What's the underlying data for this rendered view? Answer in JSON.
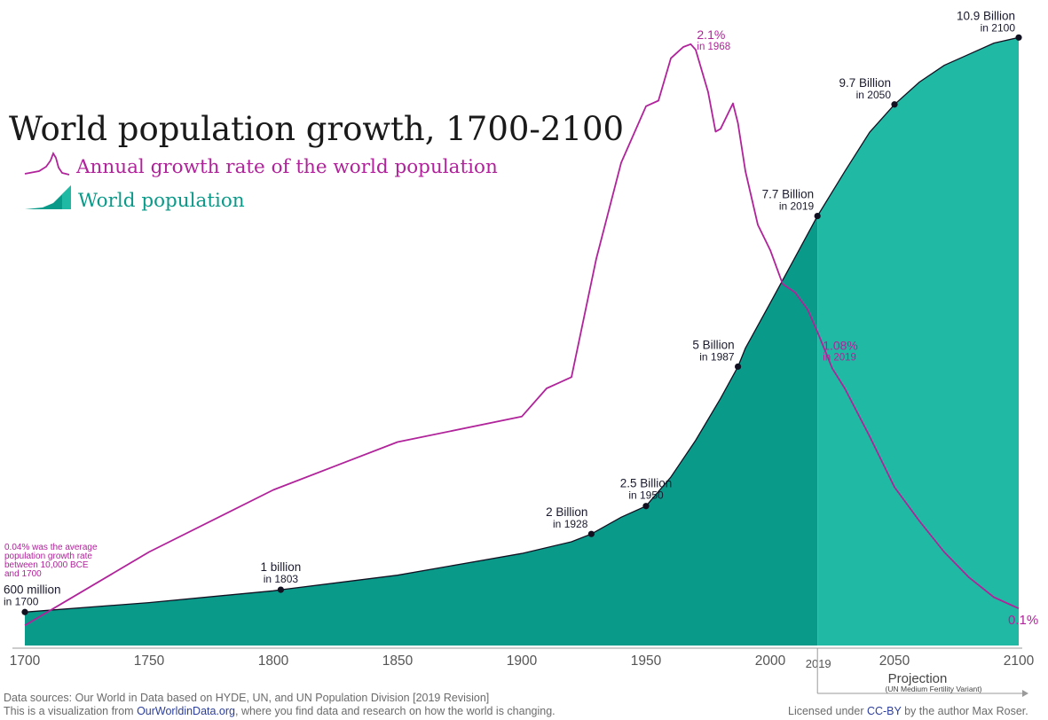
{
  "chart_data": {
    "type": "area",
    "title": "World population growth, 1700-2100",
    "legend": [
      {
        "label": "Annual growth rate of the world population",
        "color": "#b0239a",
        "icon": "growth-line-icon"
      },
      {
        "label": "World population",
        "color": "#1fb9a4",
        "icon": "population-area-icon"
      }
    ],
    "xlim": [
      1700,
      2100
    ],
    "x_ticks": [
      "1700",
      "1750",
      "1800",
      "1850",
      "1900",
      "1950",
      "2000",
      "2019",
      "2050",
      "2100"
    ],
    "projection_start": 2019,
    "series": [
      {
        "name": "World population",
        "unit": "billion",
        "ylim": [
          0,
          11
        ],
        "points": [
          [
            1700,
            0.6
          ],
          [
            1750,
            0.77
          ],
          [
            1800,
            0.98
          ],
          [
            1803,
            1.0
          ],
          [
            1850,
            1.26
          ],
          [
            1900,
            1.65
          ],
          [
            1920,
            1.86
          ],
          [
            1928,
            2.0
          ],
          [
            1940,
            2.3
          ],
          [
            1950,
            2.5
          ],
          [
            1960,
            3.02
          ],
          [
            1970,
            3.68
          ],
          [
            1980,
            4.43
          ],
          [
            1987,
            5.0
          ],
          [
            1990,
            5.33
          ],
          [
            2000,
            6.14
          ],
          [
            2010,
            6.96
          ],
          [
            2019,
            7.7
          ],
          [
            2030,
            8.5
          ],
          [
            2040,
            9.2
          ],
          [
            2050,
            9.7
          ],
          [
            2060,
            10.1
          ],
          [
            2070,
            10.4
          ],
          [
            2080,
            10.6
          ],
          [
            2090,
            10.8
          ],
          [
            2100,
            10.9
          ]
        ]
      },
      {
        "name": "Annual growth rate of the world population",
        "unit": "%",
        "ylim": [
          0,
          2.2
        ],
        "points": [
          [
            1700,
            0.04
          ],
          [
            1750,
            0.3
          ],
          [
            1800,
            0.52
          ],
          [
            1850,
            0.69
          ],
          [
            1900,
            0.78
          ],
          [
            1910,
            0.88
          ],
          [
            1920,
            0.92
          ],
          [
            1930,
            1.34
          ],
          [
            1940,
            1.68
          ],
          [
            1950,
            1.88
          ],
          [
            1955,
            1.9
          ],
          [
            1960,
            2.05
          ],
          [
            1965,
            2.09
          ],
          [
            1968,
            2.1
          ],
          [
            1970,
            2.08
          ],
          [
            1975,
            1.93
          ],
          [
            1978,
            1.79
          ],
          [
            1980,
            1.8
          ],
          [
            1985,
            1.89
          ],
          [
            1987,
            1.82
          ],
          [
            1990,
            1.65
          ],
          [
            1995,
            1.46
          ],
          [
            2000,
            1.37
          ],
          [
            2005,
            1.25
          ],
          [
            2010,
            1.22
          ],
          [
            2015,
            1.16
          ],
          [
            2019,
            1.08
          ],
          [
            2025,
            0.95
          ],
          [
            2030,
            0.88
          ],
          [
            2040,
            0.71
          ],
          [
            2050,
            0.53
          ],
          [
            2060,
            0.41
          ],
          [
            2070,
            0.3
          ],
          [
            2080,
            0.21
          ],
          [
            2090,
            0.14
          ],
          [
            2100,
            0.1
          ]
        ]
      }
    ],
    "annotations": {
      "population": [
        {
          "x": 1700,
          "value": 0.6,
          "label": "600 million",
          "sub": "in 1700",
          "anchor": "below-left"
        },
        {
          "x": 1803,
          "value": 1.0,
          "label": "1 billion",
          "sub": "in 1803",
          "anchor": "above"
        },
        {
          "x": 1928,
          "value": 2.0,
          "label": "2 Billion",
          "sub": "in 1928",
          "anchor": "left"
        },
        {
          "x": 1950,
          "value": 2.5,
          "label": "2.5 Billion",
          "sub": "in 1950",
          "anchor": "above"
        },
        {
          "x": 1987,
          "value": 5.0,
          "label": "5 Billion",
          "sub": "in 1987",
          "anchor": "left"
        },
        {
          "x": 2019,
          "value": 7.7,
          "label": "7.7 Billion",
          "sub": "in 2019",
          "anchor": "left"
        },
        {
          "x": 2050,
          "value": 9.7,
          "label": "9.7 Billion",
          "sub": "in 2050",
          "anchor": "left"
        },
        {
          "x": 2100,
          "value": 10.9,
          "label": "10.9 Billion",
          "sub": "in 2100",
          "anchor": "left"
        }
      ],
      "growth": [
        {
          "x": 1968,
          "value": 2.1,
          "label": "2.1%",
          "sub": "in 1968",
          "anchor": "right"
        },
        {
          "x": 2019,
          "value": 1.08,
          "label": "1.08%",
          "sub": "in 2019",
          "anchor": "right"
        },
        {
          "x": 2100,
          "value": 0.1,
          "label": "0.1%",
          "sub": "",
          "anchor": "below"
        }
      ],
      "note": [
        "0.04% was the average",
        "population growth rate",
        "between 10,000 BCE",
        "and 1700"
      ],
      "projection_label": "Projection",
      "projection_sub": "(UN Medium Fertility Variant)"
    }
  },
  "colors": {
    "area_historic": "#0a9a8a",
    "area_projection": "#1fb9a4",
    "growth_line": "#b0239a",
    "population_line": "#111122",
    "axis": "#333333",
    "tick_text": "#555555"
  },
  "footer": {
    "sources": "Data sources: Our World in Data based on HYDE, UN, and UN Population Division [2019 Revision]",
    "visualization_prefix": "This is a visualization from ",
    "visualization_link": "OurWorldinData.org",
    "visualization_suffix": ", where you find data and research on how the world is changing.",
    "license_prefix": "Licensed under ",
    "license_link": "CC-BY",
    "license_suffix": " by the author Max Roser."
  }
}
